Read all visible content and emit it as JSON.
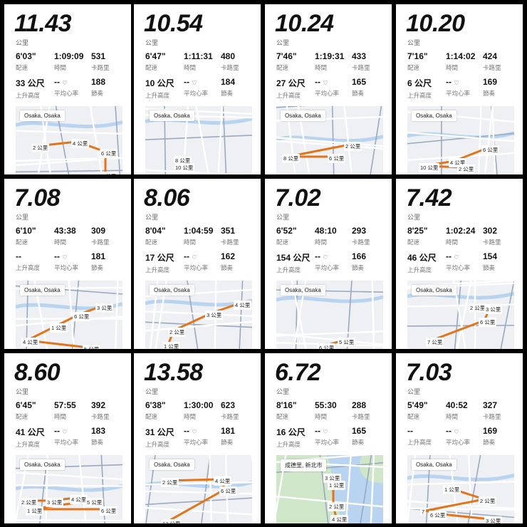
{
  "labels": {
    "unit": "公里",
    "pace": "配速",
    "time": "時間",
    "calories": "卡路里",
    "elevation": "上升高度",
    "heart_rate": "平均心率",
    "cadence": "節奏",
    "heart_icon": "♡"
  },
  "colors": {
    "route": "#e2751b",
    "map_bg": "#eef0f3",
    "water": "#b9d4f0",
    "road": "#9aa9bf"
  },
  "runs": [
    {
      "distance": "11.43",
      "pace": "6'03\"",
      "time": "1:09:09",
      "calories": "531",
      "elevation": "33 公尺",
      "heart_rate": "--",
      "cadence": "188",
      "location": "Osaka, Osaka",
      "markers": [
        [
          "2 公里",
          22,
          52
        ],
        [
          "4 公里",
          78,
          46
        ],
        [
          "6 公里",
          118,
          60
        ],
        [
          "8 公里",
          118,
          92
        ]
      ]
    },
    {
      "distance": "10.54",
      "pace": "6'47\"",
      "time": "1:11:31",
      "calories": "480",
      "elevation": "10 公尺",
      "heart_rate": "--",
      "cadence": "184",
      "location": "Osaka, Osaka",
      "markers": [
        [
          "8 公里",
          40,
          70
        ],
        [
          "10 公里",
          40,
          80
        ]
      ]
    },
    {
      "distance": "10.24",
      "pace": "7'46\"",
      "time": "1:19:31",
      "calories": "433",
      "elevation": "27 公尺",
      "heart_rate": "--",
      "cadence": "165",
      "location": "Osaka, Osaka",
      "markers": [
        [
          "2 公里",
          95,
          50
        ],
        [
          "8 公里",
          8,
          67
        ],
        [
          "6 公里",
          72,
          67
        ]
      ]
    },
    {
      "distance": "10.20",
      "pace": "7'16\"",
      "time": "1:14:02",
      "calories": "424",
      "elevation": "6 公尺",
      "heart_rate": "--",
      "cadence": "169",
      "location": "Osaka, Osaka",
      "markers": [
        [
          "6 公里",
          104,
          55
        ],
        [
          "4 公里",
          58,
          73
        ],
        [
          "10 公里",
          16,
          80
        ],
        [
          "2 公里",
          70,
          82
        ]
      ]
    },
    {
      "distance": "7.08",
      "pace": "6'10\"",
      "time": "43:38",
      "calories": "309",
      "elevation": "--",
      "heart_rate": "--",
      "cadence": "181",
      "location": "Osaka, Osaka",
      "markers": [
        [
          "3 公里",
          112,
          32
        ],
        [
          "6 公里",
          80,
          44
        ],
        [
          "1 公里",
          48,
          60
        ],
        [
          "4 公里",
          8,
          80
        ],
        [
          "5 公里",
          94,
          90
        ]
      ]
    },
    {
      "distance": "8.06",
      "pace": "8'04\"",
      "time": "1:04:59",
      "calories": "351",
      "elevation": "17 公尺",
      "heart_rate": "--",
      "cadence": "162",
      "location": "Osaka, Osaka",
      "markers": [
        [
          "4 公里",
          124,
          28
        ],
        [
          "3 公里",
          84,
          42
        ],
        [
          "2 公里",
          32,
          66
        ],
        [
          "1 公里",
          24,
          86
        ]
      ]
    },
    {
      "distance": "7.02",
      "pace": "6'52\"",
      "time": "48:10",
      "calories": "293",
      "elevation": "154 公尺",
      "heart_rate": "--",
      "cadence": "166",
      "location": "Osaka, Osaka",
      "markers": [
        [
          "5 公里",
          86,
          80
        ],
        [
          "6 公里",
          58,
          88
        ]
      ]
    },
    {
      "distance": "7.42",
      "pace": "8'25\"",
      "time": "1:02:24",
      "calories": "302",
      "elevation": "46 公尺",
      "heart_rate": "--",
      "cadence": "154",
      "location": "Osaka, Osaka",
      "markers": [
        [
          "2 公里",
          86,
          32
        ],
        [
          "3 公里",
          108,
          34
        ],
        [
          "6 公里",
          100,
          52
        ],
        [
          "7 公里",
          26,
          80
        ]
      ]
    },
    {
      "distance": "8.60",
      "pace": "6'45\"",
      "time": "57:55",
      "calories": "392",
      "elevation": "41 公尺",
      "heart_rate": "--",
      "cadence": "183",
      "location": "Osaka, Osaka",
      "markers": [
        [
          "2 公里",
          6,
          60
        ],
        [
          "3 公里",
          42,
          60
        ],
        [
          "4 公里",
          76,
          56
        ],
        [
          "5 公里",
          98,
          60
        ],
        [
          "1 公里",
          14,
          72
        ],
        [
          "6 公里",
          118,
          72
        ]
      ]
    },
    {
      "distance": "13.58",
      "pace": "6'38\"",
      "time": "1:30:00",
      "calories": "623",
      "elevation": "31 公尺",
      "heart_rate": "--",
      "cadence": "181",
      "location": "Osaka, Osaka",
      "markers": [
        [
          "2 公里",
          22,
          32
        ],
        [
          "4 公里",
          96,
          30
        ],
        [
          "6 公里",
          104,
          44
        ],
        [
          "12 公里",
          22,
          90
        ]
      ]
    },
    {
      "distance": "6.72",
      "pace": "8'16\"",
      "time": "55:30",
      "calories": "288",
      "elevation": "16 公尺",
      "heart_rate": "--",
      "cadence": "165",
      "location": "成德里, 新北市",
      "markers": [
        [
          "3 公里",
          66,
          26
        ],
        [
          "1 公里",
          72,
          36
        ],
        [
          "2 公里",
          72,
          66
        ],
        [
          "4 公里",
          76,
          84
        ]
      ]
    },
    {
      "distance": "7.03",
      "pace": "5'49\"",
      "time": "40:52",
      "calories": "327",
      "elevation": "--",
      "heart_rate": "--",
      "cadence": "169",
      "location": "Osaka, Osaka",
      "markers": [
        [
          "1 公里",
          50,
          42
        ],
        [
          "2 公里",
          100,
          58
        ],
        [
          "7",
          18,
          74
        ],
        [
          "6 公里",
          30,
          78
        ],
        [
          "3 公里",
          108,
          86
        ]
      ]
    }
  ]
}
